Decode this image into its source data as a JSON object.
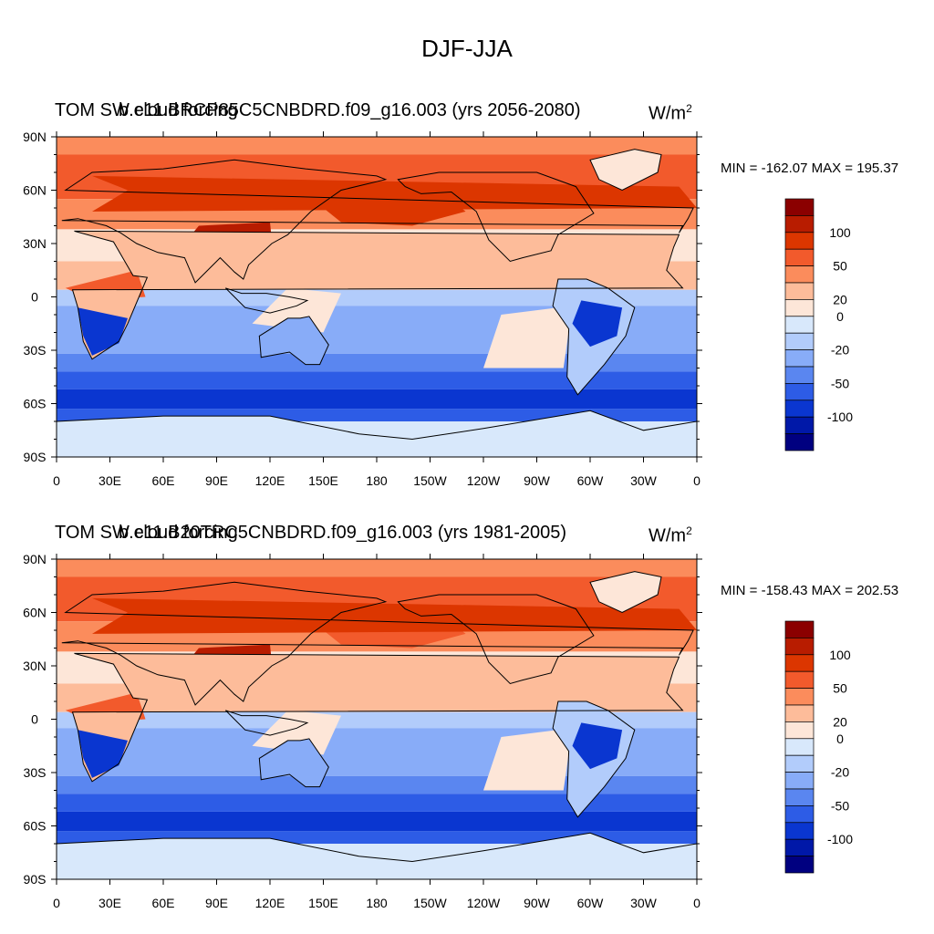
{
  "title": "DJF-JJA",
  "panels": [
    {
      "left_label": "TOM SW cloud forcing",
      "center_label": "b.e11.BRCP85C5CNBDRD.f09_g16.003 (yrs 2056-2080)",
      "units": "W/m",
      "units_sup": "2",
      "minmax": "MIN = -162.07 MAX = 195.37"
    },
    {
      "left_label": "TOM SW cloud forcing",
      "center_label": "b.e11.B20TRC5CNBDRD.f09_g16.003 (yrs 1981-2005)",
      "units": "W/m",
      "units_sup": "2",
      "minmax": "MIN = -158.43 MAX = 202.53"
    }
  ],
  "lat_ticks": [
    "90N",
    "60N",
    "30N",
    "0",
    "30S",
    "60S",
    "90S"
  ],
  "lon_ticks": [
    "0",
    "30E",
    "60E",
    "90E",
    "120E",
    "150E",
    "180",
    "150W",
    "120W",
    "90W",
    "60W",
    "30W",
    "0"
  ],
  "colorbar": {
    "labels": [
      "100",
      "50",
      "20",
      "0",
      "-20",
      "-50",
      "-100"
    ],
    "colors": [
      "#8b0000",
      "#b81c00",
      "#dc3600",
      "#f25a2c",
      "#fb8c5c",
      "#fdbc9a",
      "#fde6d8",
      "#d8e8fb",
      "#b2ccfb",
      "#88acf8",
      "#5a86f0",
      "#2d5ce6",
      "#0a36d0",
      "#0018a8",
      "#000080"
    ]
  }
}
